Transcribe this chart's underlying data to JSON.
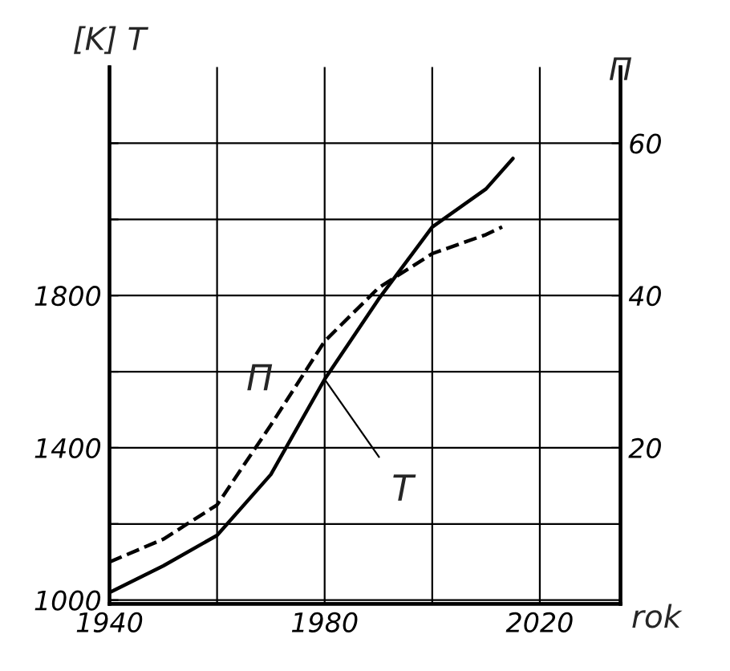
{
  "chart_data": {
    "type": "line",
    "xlabel": "rok",
    "ylabel": "[K] T",
    "y2label": "Π",
    "x": [
      1940,
      1950,
      1960,
      1970,
      1980,
      1990,
      2000,
      2010,
      2015
    ],
    "series": [
      {
        "name": "T",
        "color": "#000000",
        "line_style": "solid",
        "values": [
          1020,
          1090,
          1170,
          1330,
          1580,
          1790,
          1980,
          2080,
          2160
        ]
      },
      {
        "name": "Π",
        "color": "#000000",
        "line_style": "dashed",
        "axis": "y2",
        "x": [
          1940,
          1950,
          1960,
          1970,
          1980,
          1990,
          2000,
          2010,
          2013
        ],
        "values": [
          5,
          8,
          12.5,
          23,
          34,
          41,
          45.5,
          48,
          49
        ]
      }
    ],
    "xlim": [
      1940,
      2035
    ],
    "xticks": [
      1940,
      {
        "value": 1960,
        "label": null
      },
      1980,
      {
        "value": 2000,
        "label": null
      },
      2020
    ],
    "ylim": [
      990,
      2400
    ],
    "yticks": [
      1000,
      {
        "value": 1200,
        "label": null
      },
      1400,
      {
        "value": 1600,
        "label": null
      },
      1800,
      {
        "value": 2000,
        "label": null
      },
      {
        "value": 2200,
        "label": null
      }
    ],
    "y2lim": [
      -0.5,
      70
    ],
    "y2ticks": [
      20,
      40,
      60
    ],
    "grid": true
  }
}
